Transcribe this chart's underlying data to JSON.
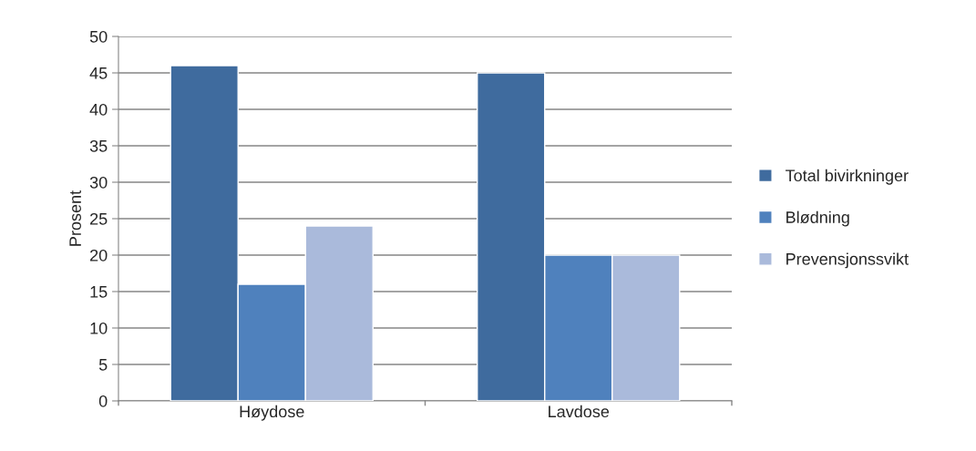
{
  "chart_data": {
    "type": "bar",
    "ylabel": "Prosent",
    "categories": [
      "Høydose",
      "Lavdose"
    ],
    "series": [
      {
        "name": "Total bivirkninger",
        "color": "#3f6b9e",
        "values": [
          46,
          45
        ]
      },
      {
        "name": "Blødning",
        "color": "#4f81bd",
        "values": [
          16,
          20
        ]
      },
      {
        "name": "Prevensjonssvikt",
        "color": "#aabadb",
        "values": [
          24,
          20
        ]
      }
    ],
    "ylim": [
      0,
      50
    ],
    "yticks": [
      0,
      5,
      10,
      15,
      20,
      25,
      30,
      35,
      40,
      45,
      50
    ],
    "grid": "y",
    "legend": "right"
  }
}
